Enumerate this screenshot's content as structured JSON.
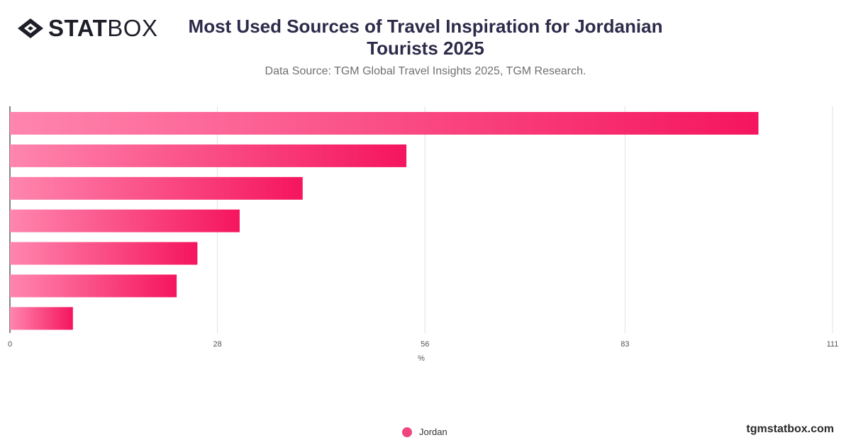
{
  "logo": {
    "bold_text": "STAT",
    "light_text": "BOX"
  },
  "header": {
    "title": "Most Used Sources of Travel Inspiration for Jordanian Tourists 2025",
    "subtitle": "Data Source: TGM Global Travel Insights 2025, TGM Research."
  },
  "legend": {
    "label": "Jordan"
  },
  "footer": {
    "brand": "tgmstatbox.com"
  },
  "colors": {
    "bar_start": "#ff86ae",
    "bar_end": "#f5155f",
    "legend_dot": "#f0457f"
  },
  "chart_data": {
    "type": "bar",
    "orientation": "horizontal",
    "categories": [
      "",
      "",
      "",
      "",
      "",
      "",
      ""
    ],
    "series": [
      {
        "name": "Jordan",
        "values": [
          101,
          53.5,
          39.5,
          31,
          25.3,
          22.5,
          8.5
        ]
      }
    ],
    "xlabel": "%",
    "xlim": [
      0,
      111
    ],
    "xticks": [
      0,
      28,
      56,
      83,
      111
    ],
    "grid": true,
    "legend_position": "bottom"
  }
}
